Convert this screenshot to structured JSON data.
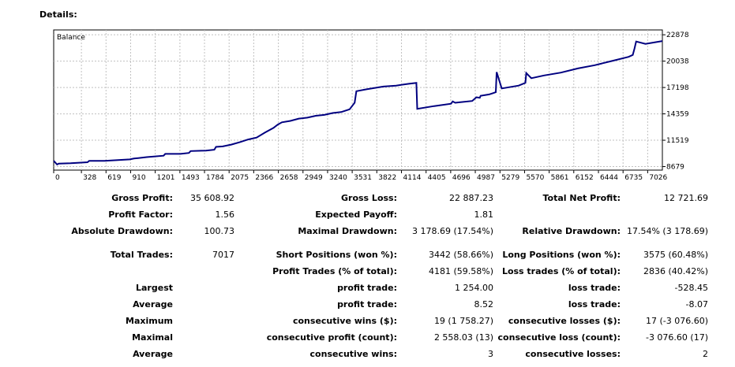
{
  "header": {
    "title": "Details:"
  },
  "chart_data": {
    "type": "line",
    "title": "Balance",
    "x_ticks": [
      0,
      328,
      619,
      910,
      1201,
      1493,
      1784,
      2075,
      2366,
      2658,
      2949,
      3240,
      3531,
      3822,
      4114,
      4405,
      4696,
      4987,
      5279,
      5570,
      5861,
      6152,
      6444,
      6735,
      7026
    ],
    "y_ticks": [
      8679,
      11519,
      14359,
      17198,
      20038,
      22878
    ],
    "xlim": [
      0,
      7200
    ],
    "ylim": [
      8300,
      23400
    ],
    "grid": true,
    "series": [
      {
        "color": "#000080",
        "x": [
          0,
          40,
          60,
          200,
          400,
          420,
          600,
          900,
          950,
          1000,
          1100,
          1300,
          1320,
          1500,
          1600,
          1620,
          1800,
          1900,
          1920,
          2000,
          2100,
          2200,
          2300,
          2400,
          2500,
          2600,
          2650,
          2700,
          2800,
          2900,
          3000,
          3100,
          3200,
          3300,
          3400,
          3450,
          3500,
          3560,
          3580,
          3700,
          3900,
          4050,
          4200,
          4290,
          4300,
          4500,
          4700,
          4720,
          4750,
          4800,
          4950,
          5000,
          5040,
          5050,
          5150,
          5200,
          5230,
          5240,
          5300,
          5500,
          5580,
          5590,
          5650,
          5800,
          6000,
          6200,
          6400,
          6600,
          6800,
          6850,
          6870,
          6890,
          7000,
          7200
        ],
        "y": [
          9300,
          8900,
          9000,
          9050,
          9150,
          9300,
          9300,
          9450,
          9550,
          9600,
          9700,
          9850,
          10050,
          10050,
          10150,
          10350,
          10400,
          10500,
          10800,
          10850,
          11050,
          11300,
          11600,
          11800,
          12350,
          12850,
          13200,
          13450,
          13600,
          13850,
          13950,
          14150,
          14250,
          14450,
          14550,
          14700,
          14850,
          15550,
          16800,
          17000,
          17300,
          17400,
          17600,
          17700,
          14900,
          15200,
          15450,
          15700,
          15550,
          15600,
          15750,
          16150,
          16100,
          16300,
          16450,
          16600,
          16700,
          18850,
          17100,
          17400,
          17700,
          18750,
          18200,
          18500,
          18800,
          19250,
          19600,
          20050,
          20500,
          20700,
          21400,
          22150,
          21900,
          22200
        ]
      }
    ]
  },
  "stats": {
    "gross_profit": {
      "label": "Gross Profit:",
      "value": "35 608.92"
    },
    "gross_loss": {
      "label": "Gross Loss:",
      "value": "22 887.23"
    },
    "total_net_profit": {
      "label": "Total Net Profit:",
      "value": "12 721.69"
    },
    "profit_factor": {
      "label": "Profit Factor:",
      "value": "1.56"
    },
    "expected_payoff": {
      "label": "Expected Payoff:",
      "value": "1.81"
    },
    "absolute_drawdown": {
      "label": "Absolute Drawdown:",
      "value": "100.73"
    },
    "maximal_drawdown": {
      "label": "Maximal Drawdown:",
      "value": "3 178.69 (17.54%)"
    },
    "relative_drawdown": {
      "label": "Relative Drawdown:",
      "value": "17.54% (3 178.69)"
    },
    "total_trades": {
      "label": "Total Trades:",
      "value": "7017"
    },
    "short_positions": {
      "label": "Short Positions (won %):",
      "value": "3442 (58.66%)"
    },
    "long_positions": {
      "label": "Long Positions (won %):",
      "value": "3575 (60.48%)"
    },
    "profit_trades": {
      "label": "Profit Trades (% of total):",
      "value": "4181 (59.58%)"
    },
    "loss_trades": {
      "label": "Loss trades (% of total):",
      "value": "2836 (40.42%)"
    },
    "largest": {
      "label": "Largest",
      "profit_label": "profit trade:",
      "profit_value": "1 254.00",
      "loss_label": "loss trade:",
      "loss_value": "-528.45"
    },
    "average": {
      "label": "Average",
      "profit_label": "profit trade:",
      "profit_value": "8.52",
      "loss_label": "loss trade:",
      "loss_value": "-8.07"
    },
    "maximum": {
      "label": "Maximum",
      "profit_label": "consecutive wins ($):",
      "profit_value": "19 (1 758.27)",
      "loss_label": "consecutive losses ($):",
      "loss_value": "17 (-3 076.60)"
    },
    "maximal": {
      "label": "Maximal",
      "profit_label": "consecutive profit (count):",
      "profit_value": "2 558.03 (13)",
      "loss_label": "consecutive loss (count):",
      "loss_value": "-3 076.60 (17)"
    },
    "average_consec": {
      "label": "Average",
      "profit_label": "consecutive wins:",
      "profit_value": "3",
      "loss_label": "consecutive losses:",
      "loss_value": "2"
    }
  }
}
